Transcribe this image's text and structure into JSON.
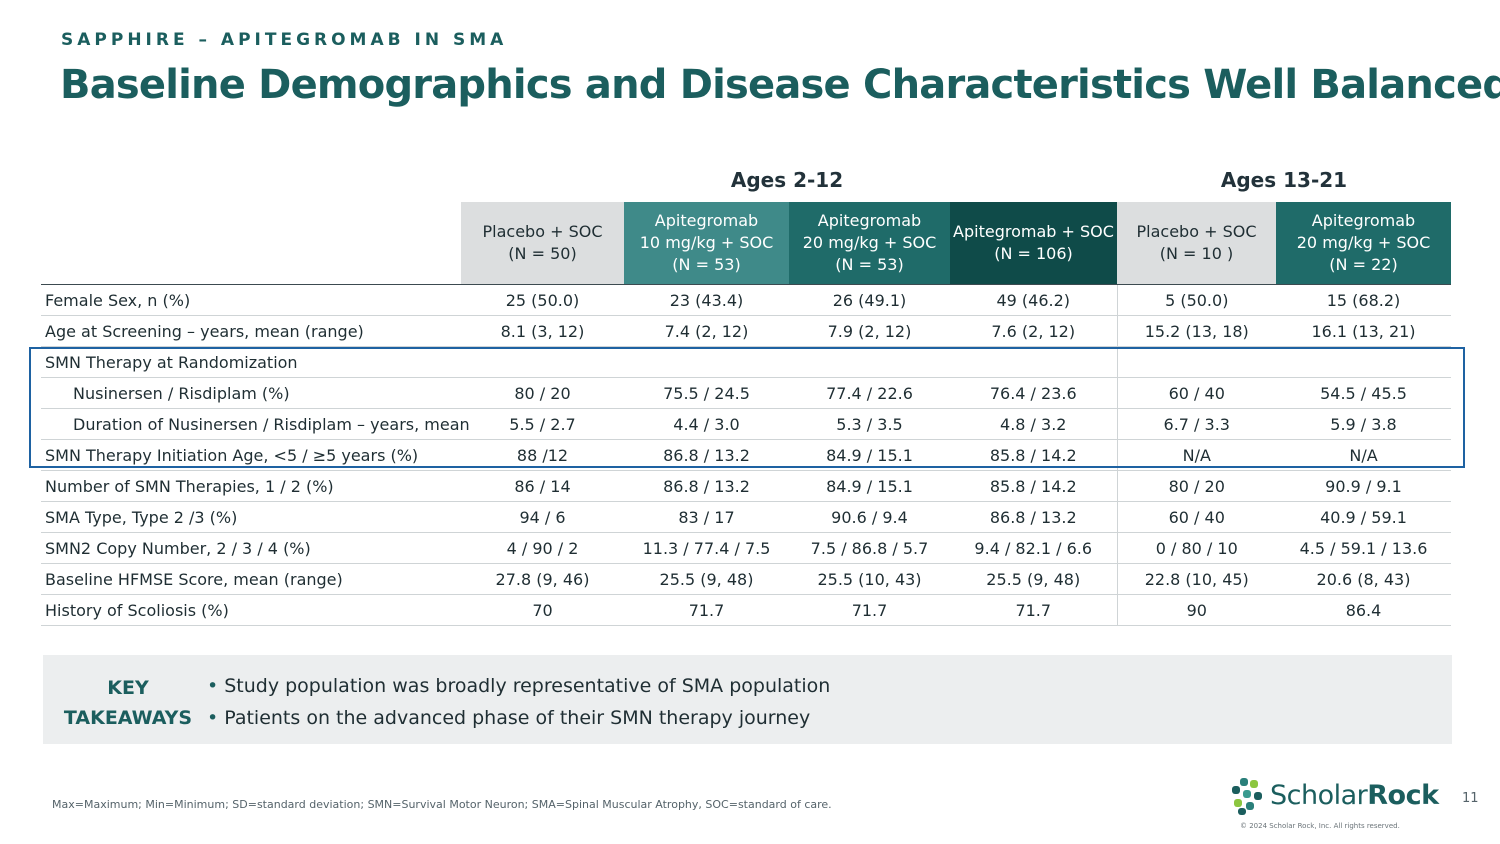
{
  "header": {
    "eyebrow": "SAPPHIRE – APITEGROMAB IN SMA",
    "title": "Baseline Demographics and Disease Characteristics Well Balanced"
  },
  "groups": {
    "ages_2_12": "Ages 2-12",
    "ages_13_21": "Ages 13-21"
  },
  "columns": [
    {
      "line1": "",
      "line2": "Placebo + SOC",
      "line3": "(N = 50)"
    },
    {
      "line1": "Apitegromab",
      "line2": "10 mg/kg + SOC",
      "line3": "(N = 53)"
    },
    {
      "line1": "Apitegromab",
      "line2": "20 mg/kg + SOC",
      "line3": "(N = 53)"
    },
    {
      "line1": "",
      "line2": "Apitegromab + SOC",
      "line3": "(N = 106)"
    },
    {
      "line1": "",
      "line2": "Placebo + SOC",
      "line3": "(N = 10 )"
    },
    {
      "line1": "Apitegromab",
      "line2": "20 mg/kg + SOC",
      "line3": "(N = 22)"
    }
  ],
  "rows": [
    {
      "label": "Female Sex, n (%)",
      "values": [
        "25 (50.0)",
        "23 (43.4)",
        "26 (49.1)",
        "49 (46.2)",
        "5 (50.0)",
        "15 (68.2)"
      ]
    },
    {
      "label": "Age at Screening – years, mean (range)",
      "values": [
        "8.1 (3, 12)",
        "7.4 (2, 12)",
        "7.9 (2, 12)",
        "7.6 (2, 12)",
        "15.2 (13, 18)",
        "16.1 (13, 21)"
      ]
    },
    {
      "label": "SMN Therapy at Randomization",
      "values": [
        "",
        "",
        "",
        "",
        "",
        ""
      ]
    },
    {
      "label": "Nusinersen / Risdiplam (%)",
      "values": [
        "80 / 20",
        "75.5 / 24.5",
        "77.4 / 22.6",
        "76.4 / 23.6",
        "60 / 40",
        "54.5 / 45.5"
      ]
    },
    {
      "label": "Duration of Nusinersen / Risdiplam – years, mean",
      "values": [
        "5.5 / 2.7",
        "4.4 / 3.0",
        "5.3 / 3.5",
        "4.8 / 3.2",
        "6.7 / 3.3",
        "5.9 / 3.8"
      ]
    },
    {
      "label": "SMN Therapy Initiation Age, <5 / ≥5 years (%)",
      "values": [
        "88 /12",
        "86.8 / 13.2",
        "84.9 / 15.1",
        "85.8 / 14.2",
        "N/A",
        "N/A"
      ]
    },
    {
      "label": "Number of SMN Therapies, 1 / 2 (%)",
      "values": [
        "86 / 14",
        "86.8 / 13.2",
        "84.9 / 15.1",
        "85.8 / 14.2",
        "80 / 20",
        "90.9 / 9.1"
      ]
    },
    {
      "label": "SMA Type, Type 2 /3 (%)",
      "values": [
        "94 / 6",
        "83 / 17",
        "90.6 / 9.4",
        "86.8 / 13.2",
        "60 / 40",
        "40.9 / 59.1"
      ]
    },
    {
      "label": "SMN2 Copy Number, 2 / 3 / 4 (%)",
      "values": [
        "4 / 90 / 2",
        "11.3 / 77.4 / 7.5",
        "7.5 / 86.8 / 5.7",
        "9.4 / 82.1 / 6.6",
        "0 / 80 / 10",
        "4.5 / 59.1 / 13.6"
      ]
    },
    {
      "label": "Baseline HFMSE Score, mean (range)",
      "values": [
        "27.8 (9, 46)",
        "25.5 (9, 48)",
        "25.5 (10, 43)",
        "25.5 (9, 48)",
        "22.8 (10, 45)",
        "20.6 (8, 43)"
      ]
    },
    {
      "label": "History of Scoliosis (%)",
      "values": [
        "70",
        "71.7",
        "71.7",
        "71.7",
        "90",
        "86.4"
      ]
    }
  ],
  "takeaways": {
    "key_line1": "KEY",
    "key_line2": "TAKEAWAYS",
    "bullets": [
      "Study population was broadly representative of SMA population",
      "Patients on the advanced phase of their SMN therapy journey"
    ]
  },
  "footnote": "Max=Maximum; Min=Minimum; SD=standard deviation; SMN=Survival Motor Neuron; SMA=Spinal Muscular Atrophy, SOC=standard of care.",
  "logo": {
    "text_regular": "Scholar",
    "text_bold": "Rock",
    "icon": "scholar-rock-logo-mark"
  },
  "copyright": "© 2024 Scholar Rock, Inc. All rights reserved.",
  "page_number": "11",
  "colors": {
    "brand_teal": "#1b5e5e",
    "highlight_border": "#1e62a2",
    "placebo_header": "#dcdedf",
    "header_10mg": "#3f8a89",
    "header_20mg": "#1f6b69",
    "header_combined": "#0f4b49"
  }
}
